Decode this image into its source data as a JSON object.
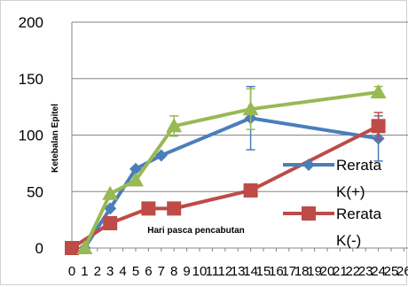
{
  "chart_data": {
    "type": "line",
    "xlabel": "Hari pasca pencabutan",
    "ylabel": "Ketebalan Epitel",
    "ylim": [
      0,
      200
    ],
    "y_ticks": [
      "0",
      "50",
      "100",
      "150",
      "200"
    ],
    "x_ticks": [
      "0",
      "1",
      "2",
      "3",
      "4",
      "5",
      "6",
      "7",
      "8",
      "9",
      "10",
      "11",
      "12",
      "13",
      "14",
      "15",
      "16",
      "17",
      "18",
      "19",
      "20",
      "21",
      "22",
      "23",
      "24",
      "25",
      "26"
    ],
    "grid": "horizontal",
    "legend_position": "right",
    "series": [
      {
        "name": "Rerata K(+)",
        "color": "#4a7ebb",
        "marker": "diamond",
        "x": [
          1,
          3,
          5,
          7,
          14,
          24
        ],
        "y": [
          0,
          35,
          70,
          82,
          115,
          97
        ],
        "err": [
          0,
          0,
          0,
          0,
          28,
          20
        ]
      },
      {
        "name": "Rerata K(-)",
        "color": "#be4b48",
        "marker": "square",
        "x": [
          0,
          3,
          6,
          8,
          14,
          24
        ],
        "y": [
          0,
          22,
          35,
          35,
          51,
          108
        ],
        "err": [
          0,
          0,
          0,
          0,
          0,
          12
        ]
      },
      {
        "name": "",
        "color": "#98b954",
        "marker": "triangle",
        "x": [
          1,
          3,
          5,
          8,
          14,
          24
        ],
        "y": [
          0,
          48,
          60,
          108,
          123,
          138
        ],
        "err": [
          0,
          0,
          0,
          9,
          18,
          5
        ]
      }
    ],
    "legend": [
      {
        "series": 0,
        "lines": [
          "Rerata",
          "K(+)"
        ]
      },
      {
        "series": 1,
        "lines": [
          "Rerata",
          "K(-)"
        ]
      }
    ]
  }
}
